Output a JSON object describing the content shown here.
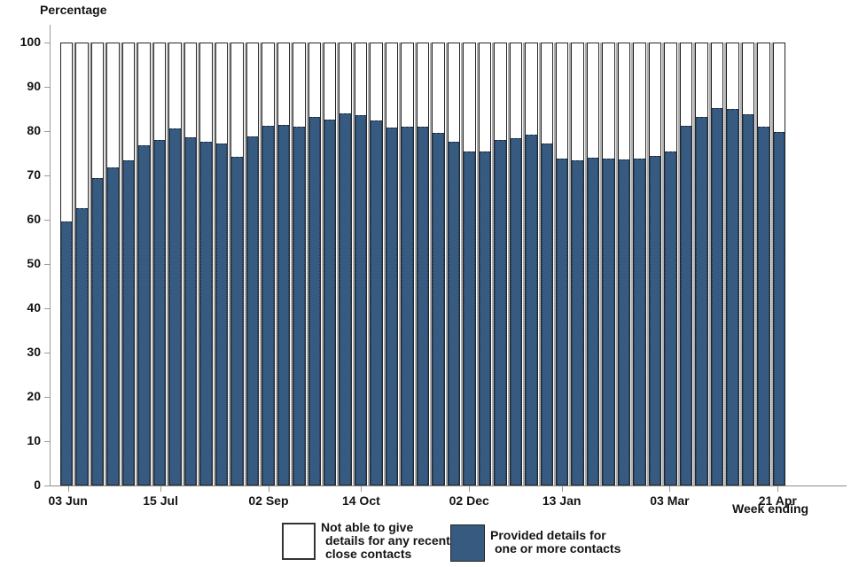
{
  "y_axis_title": "Percentage",
  "x_axis_caption": "Week ending",
  "colors": {
    "provided_fill": "#365A80",
    "not_able_fill": "#FFFFFF",
    "bar_outline": "#262626",
    "axis_line": "#9A9A9A",
    "bar_gap_shadow": "#ABABAB",
    "text": "#141414"
  },
  "chart_data": {
    "type": "bar",
    "stacked": true,
    "stack_total": 100,
    "ylim": [
      0,
      100
    ],
    "yticks": [
      0,
      10,
      20,
      30,
      40,
      50,
      60,
      70,
      80,
      90,
      100
    ],
    "n_bars": 47,
    "x_tick_labels": [
      {
        "index": 0,
        "label": "03 Jun"
      },
      {
        "index": 6,
        "label": "15 Jul"
      },
      {
        "index": 13,
        "label": "02 Sep"
      },
      {
        "index": 19,
        "label": "14 Oct"
      },
      {
        "index": 26,
        "label": "02 Dec"
      },
      {
        "index": 32,
        "label": "13 Jan"
      },
      {
        "index": 39,
        "label": "03 Mar"
      },
      {
        "index": 46,
        "label": "21 Apr"
      }
    ],
    "series": [
      {
        "name": "Provided details for one or more contacts",
        "color": "#365A80",
        "values": [
          59.4,
          62.4,
          69.2,
          71.7,
          73.3,
          76.8,
          78.0,
          80.6,
          78.6,
          77.6,
          77.1,
          74.1,
          78.8,
          81.1,
          81.4,
          80.9,
          83.1,
          82.6,
          83.9,
          83.6,
          82.4,
          80.7,
          80.9,
          81.0,
          79.5,
          77.5,
          75.4,
          75.3,
          77.9,
          78.3,
          79.2,
          77.2,
          73.7,
          73.3,
          73.9,
          73.6,
          73.4,
          73.7,
          74.4,
          75.3,
          81.2,
          83.2,
          85.2,
          85.0,
          83.8,
          81.0,
          79.8
        ]
      },
      {
        "name": "Not able to give details for any recent close contacts",
        "color": "#FFFFFF",
        "values": [
          40.6,
          37.6,
          30.8,
          28.3,
          26.7,
          23.2,
          22.0,
          19.4,
          21.4,
          22.4,
          22.9,
          25.9,
          21.2,
          18.9,
          18.6,
          19.1,
          16.9,
          17.4,
          16.1,
          16.4,
          17.6,
          19.3,
          19.1,
          19.0,
          20.5,
          22.5,
          24.6,
          24.7,
          22.1,
          21.7,
          20.8,
          22.8,
          26.3,
          26.7,
          26.1,
          26.4,
          26.6,
          26.3,
          25.6,
          24.7,
          18.8,
          16.8,
          14.8,
          15.0,
          16.2,
          19.0,
          20.2
        ]
      }
    ],
    "legend_position": "bottom"
  },
  "legend": {
    "items": [
      {
        "swatch": "white",
        "lines": [
          "Not able to give",
          "details for any recent",
          "close contacts"
        ]
      },
      {
        "swatch": "blue",
        "lines": [
          "Provided details for",
          "one or more contacts"
        ]
      }
    ]
  }
}
